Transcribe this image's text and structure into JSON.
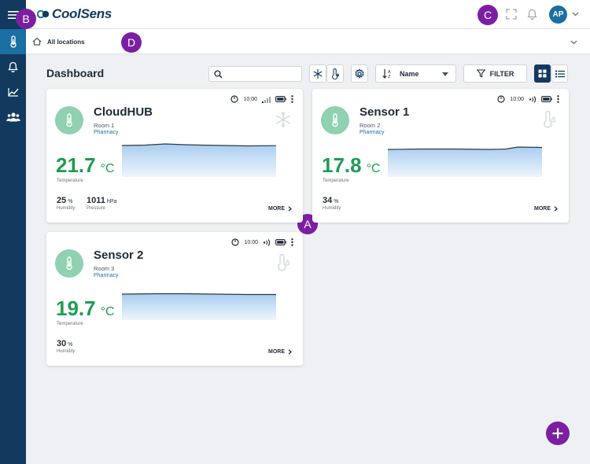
{
  "app": {
    "name": "CoolSens"
  },
  "header": {
    "avatar_initials": "AP"
  },
  "breadcrumb": {
    "label": "All locations"
  },
  "page": {
    "title": "Dashboard"
  },
  "toolbar": {
    "search_placeholder": "",
    "sort_label": "Name",
    "filter_label": "FILTER"
  },
  "markers": {
    "a": "A",
    "b": "B",
    "c": "C",
    "d": "D"
  },
  "colors": {
    "sidebar": "#113a5e",
    "sidebar_active": "#1a6fa3",
    "accent": "#1a6fa3",
    "temperature": "#1f9d55",
    "marker": "#7b1fa2",
    "icon_circle": "#8fd1b1"
  },
  "cards": [
    {
      "name": "CloudHUB",
      "room": "Room 1",
      "site": "Pharmacy",
      "time": "10:00",
      "temperature": "21.7",
      "unit": "°C",
      "temp_label": "Temperature",
      "humidity": "25",
      "humidity_unit": "%",
      "humidity_label": "Humidity",
      "pressure": "1011",
      "pressure_unit": "hPa",
      "pressure_label": "Pressure",
      "more": "MORE",
      "signal": "cell-signal-icon",
      "type_icon": "snowflake-icon"
    },
    {
      "name": "Sensor 1",
      "room": "Room 2",
      "site": "Pharmacy",
      "time": "10:00",
      "temperature": "17.8",
      "unit": "°C",
      "temp_label": "Temperature",
      "humidity": "34",
      "humidity_unit": "%",
      "humidity_label": "Humidity",
      "more": "MORE",
      "signal": "radio-wave-icon",
      "type_icon": "thermo-drop-icon"
    },
    {
      "name": "Sensor 2",
      "room": "Room 3",
      "site": "Pharmacy",
      "time": "10:00",
      "temperature": "19.7",
      "unit": "°C",
      "temp_label": "Temperature",
      "humidity": "30",
      "humidity_unit": "%",
      "humidity_label": "Humidity",
      "more": "MORE",
      "signal": "radio-wave-icon",
      "type_icon": "thermo-drop-icon"
    }
  ]
}
